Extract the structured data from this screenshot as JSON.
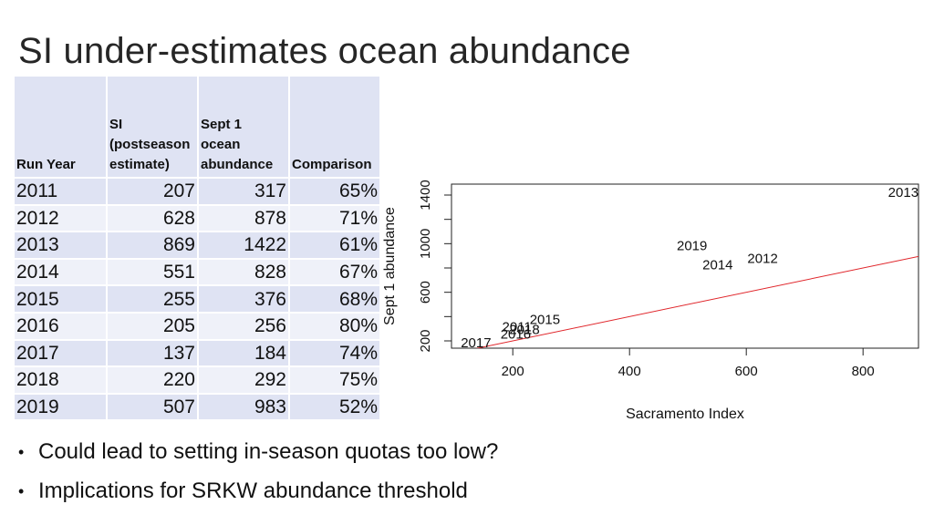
{
  "title": "SI under-estimates ocean abundance",
  "table": {
    "headers": {
      "year": "Run Year",
      "si": [
        "SI",
        "(postseason",
        "estimate)"
      ],
      "ocean": [
        "Sept 1",
        "ocean",
        "abundance"
      ],
      "comparison": "Comparison"
    },
    "rows": [
      {
        "year": "2011",
        "si": "207",
        "ocean": "317",
        "comparison": "65%"
      },
      {
        "year": "2012",
        "si": "628",
        "ocean": "878",
        "comparison": "71%"
      },
      {
        "year": "2013",
        "si": "869",
        "ocean": "1422",
        "comparison": "61%"
      },
      {
        "year": "2014",
        "si": "551",
        "ocean": "828",
        "comparison": "67%"
      },
      {
        "year": "2015",
        "si": "255",
        "ocean": "376",
        "comparison": "68%"
      },
      {
        "year": "2016",
        "si": "205",
        "ocean": "256",
        "comparison": "80%"
      },
      {
        "year": "2017",
        "si": "137",
        "ocean": "184",
        "comparison": "74%"
      },
      {
        "year": "2018",
        "si": "220",
        "ocean": "292",
        "comparison": "75%"
      },
      {
        "year": "2019",
        "si": "507",
        "ocean": "983",
        "comparison": "52%"
      }
    ]
  },
  "chart_data": {
    "type": "scatter",
    "xlabel": "Sacramento Index",
    "ylabel": "Sept 1 abundance",
    "xlim": [
      95,
      895
    ],
    "ylim": [
      140,
      1490
    ],
    "xticks": [
      200,
      400,
      600,
      800
    ],
    "yticks": [
      200,
      600,
      1000,
      1400
    ],
    "points": [
      {
        "label": "2011",
        "x": 207,
        "y": 317
      },
      {
        "label": "2012",
        "x": 628,
        "y": 878
      },
      {
        "label": "2013",
        "x": 869,
        "y": 1422
      },
      {
        "label": "2014",
        "x": 551,
        "y": 828
      },
      {
        "label": "2015",
        "x": 255,
        "y": 376
      },
      {
        "label": "2016",
        "x": 205,
        "y": 256
      },
      {
        "label": "2017",
        "x": 137,
        "y": 184
      },
      {
        "label": "2018",
        "x": 220,
        "y": 292
      },
      {
        "label": "2019",
        "x": 507,
        "y": 983
      }
    ],
    "reference_line": {
      "description": "1:1 line",
      "slope": 1,
      "intercept": 0,
      "color": "#e0262b"
    },
    "grid": false
  },
  "bullets": [
    "Could lead to setting in-season quotas too low?",
    "Implications for SRKW abundance threshold"
  ]
}
